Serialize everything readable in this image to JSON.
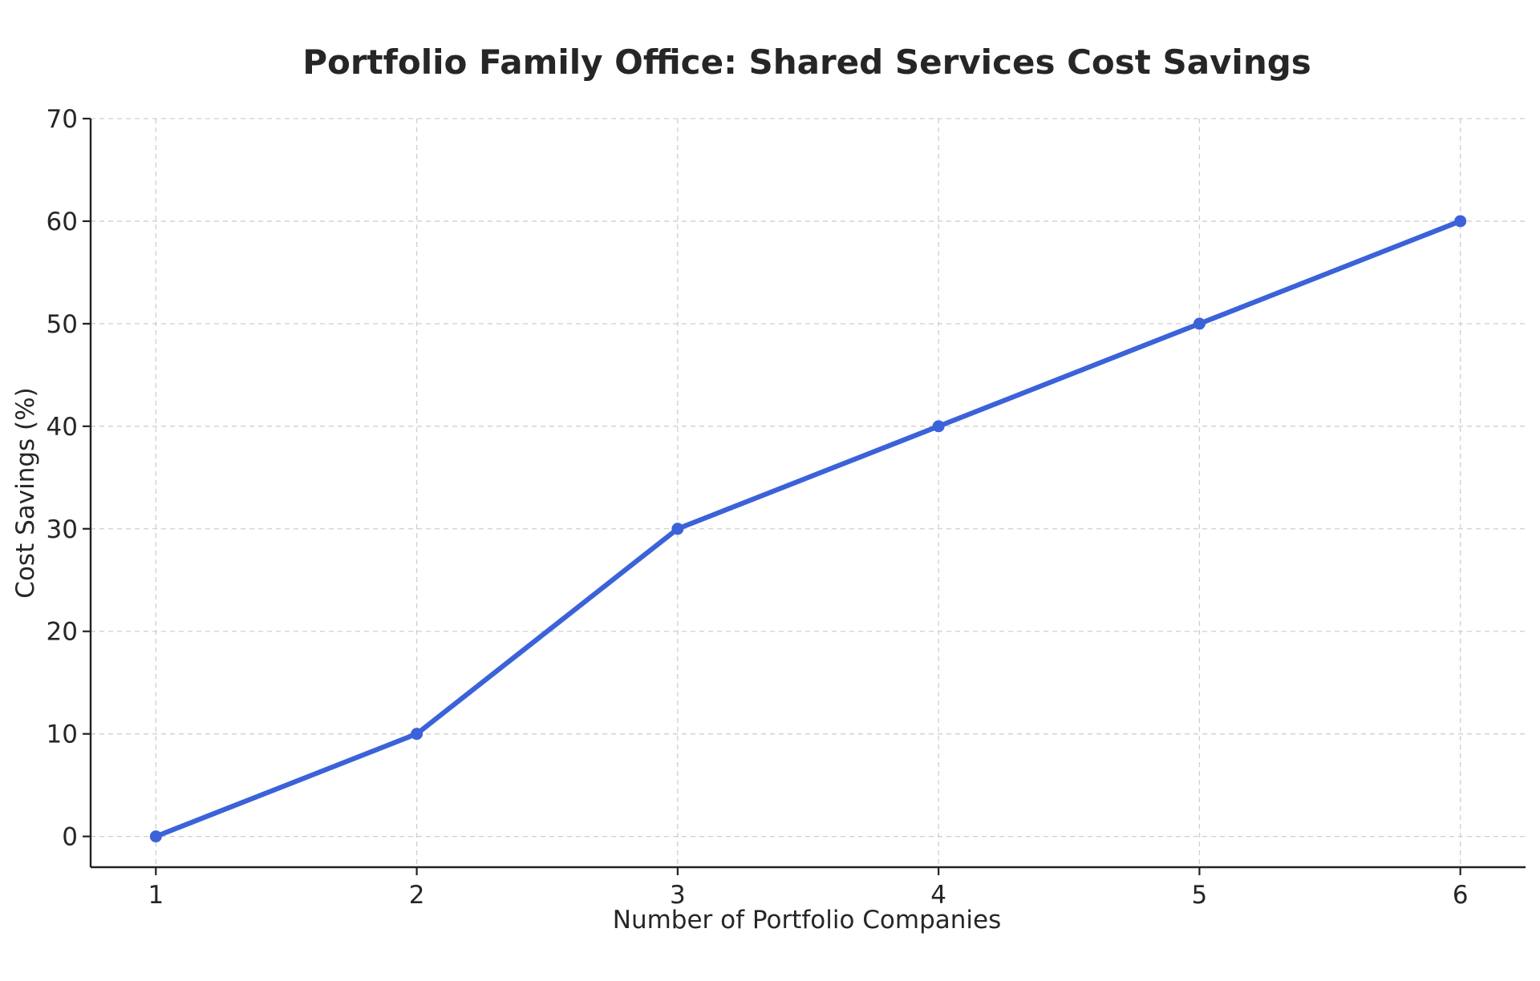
{
  "chart_data": {
    "type": "line",
    "title": "Portfolio Family Office: Shared Services Cost Savings",
    "xlabel": "Number of Portfolio Companies",
    "ylabel": "Cost Savings (%)",
    "x": [
      1,
      2,
      3,
      4,
      5,
      6
    ],
    "series": [
      {
        "name": "Cost Savings (%)",
        "values": [
          0,
          10,
          30,
          40,
          50,
          60
        ],
        "color": "#3b62d9"
      }
    ],
    "x_ticks": [
      "1",
      "2",
      "3",
      "4",
      "5",
      "6"
    ],
    "y_ticks": [
      "0",
      "10",
      "20",
      "30",
      "40",
      "50",
      "60",
      "70"
    ],
    "ylim": [
      -3,
      70
    ],
    "xlim": [
      0.75,
      6.25
    ],
    "grid": true,
    "legend": "none"
  }
}
